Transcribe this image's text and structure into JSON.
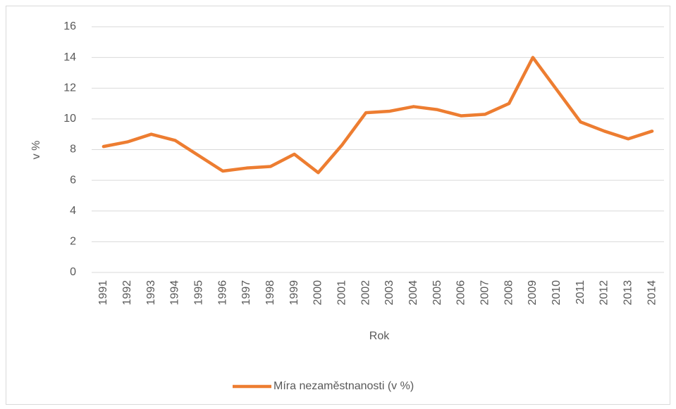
{
  "chart_data": {
    "type": "line",
    "ylabel": "v %",
    "xlabel": "Rok",
    "categories": [
      "1991",
      "1992",
      "1993",
      "1994",
      "1995",
      "1996",
      "1997",
      "1998",
      "1999",
      "2000",
      "2001",
      "2002",
      "2003",
      "2004",
      "2005",
      "2006",
      "2007",
      "2008",
      "2009",
      "2010",
      "2011",
      "2012",
      "2013",
      "2014"
    ],
    "series": [
      {
        "name": "Míra nezaměstnanosti (v %)",
        "color": "#ed7d31",
        "values": [
          8.2,
          8.5,
          9.0,
          8.6,
          7.6,
          6.6,
          6.8,
          6.9,
          7.7,
          6.5,
          8.3,
          10.4,
          10.5,
          10.8,
          10.6,
          10.2,
          10.3,
          11.0,
          14.0,
          11.9,
          9.8,
          9.2,
          8.7,
          9.2
        ]
      }
    ],
    "ylim": [
      0,
      16
    ],
    "yticks": [
      0,
      2,
      4,
      6,
      8,
      10,
      12,
      14,
      16
    ],
    "grid": true,
    "legend": "bottom"
  }
}
